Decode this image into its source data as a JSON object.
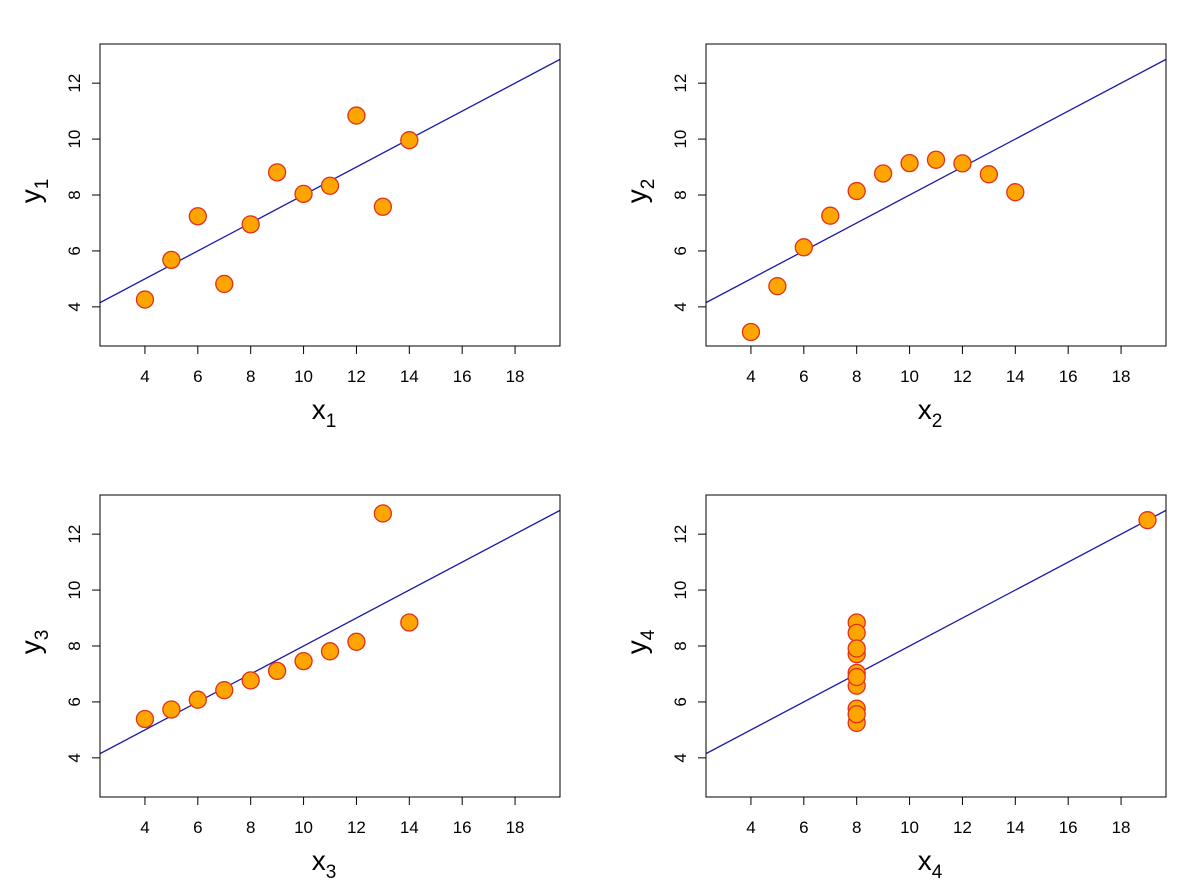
{
  "chart_data": [
    {
      "type": "scatter",
      "xlabel": "x",
      "xlabel_sub": "1",
      "ylabel": "y",
      "ylabel_sub": "1",
      "x_ticks": [
        4,
        6,
        8,
        10,
        12,
        14,
        16,
        18
      ],
      "y_ticks": [
        4,
        6,
        8,
        10,
        12
      ],
      "xlim": [
        2.3,
        19.7
      ],
      "ylim": [
        2.6,
        13.4
      ],
      "grid": false,
      "points": [
        [
          10,
          8.04
        ],
        [
          8,
          6.95
        ],
        [
          13,
          7.58
        ],
        [
          9,
          8.81
        ],
        [
          11,
          8.33
        ],
        [
          14,
          9.96
        ],
        [
          6,
          7.24
        ],
        [
          4,
          4.26
        ],
        [
          12,
          10.84
        ],
        [
          7,
          4.82
        ],
        [
          5,
          5.68
        ]
      ],
      "fit_line": {
        "intercept": 3.0,
        "slope": 0.5
      },
      "colors": {
        "point_fill": "#ffa500",
        "point_stroke": "#e0301e",
        "line": "#1a1aaa"
      }
    },
    {
      "type": "scatter",
      "xlabel": "x",
      "xlabel_sub": "2",
      "ylabel": "y",
      "ylabel_sub": "2",
      "x_ticks": [
        4,
        6,
        8,
        10,
        12,
        14,
        16,
        18
      ],
      "y_ticks": [
        4,
        6,
        8,
        10,
        12
      ],
      "xlim": [
        2.3,
        19.7
      ],
      "ylim": [
        2.6,
        13.4
      ],
      "grid": false,
      "points": [
        [
          10,
          9.14
        ],
        [
          8,
          8.14
        ],
        [
          13,
          8.74
        ],
        [
          9,
          8.77
        ],
        [
          11,
          9.26
        ],
        [
          14,
          8.1
        ],
        [
          6,
          6.13
        ],
        [
          4,
          3.1
        ],
        [
          12,
          9.13
        ],
        [
          7,
          7.26
        ],
        [
          5,
          4.74
        ]
      ],
      "fit_line": {
        "intercept": 3.0,
        "slope": 0.5
      },
      "colors": {
        "point_fill": "#ffa500",
        "point_stroke": "#e0301e",
        "line": "#1a1aaa"
      }
    },
    {
      "type": "scatter",
      "xlabel": "x",
      "xlabel_sub": "3",
      "ylabel": "y",
      "ylabel_sub": "3",
      "x_ticks": [
        4,
        6,
        8,
        10,
        12,
        14,
        16,
        18
      ],
      "y_ticks": [
        4,
        6,
        8,
        10,
        12
      ],
      "xlim": [
        2.3,
        19.7
      ],
      "ylim": [
        2.6,
        13.4
      ],
      "grid": false,
      "points": [
        [
          10,
          7.46
        ],
        [
          8,
          6.77
        ],
        [
          13,
          12.74
        ],
        [
          9,
          7.11
        ],
        [
          11,
          7.81
        ],
        [
          14,
          8.84
        ],
        [
          6,
          6.08
        ],
        [
          4,
          5.39
        ],
        [
          12,
          8.15
        ],
        [
          7,
          6.42
        ],
        [
          5,
          5.73
        ]
      ],
      "fit_line": {
        "intercept": 3.0,
        "slope": 0.5
      },
      "colors": {
        "point_fill": "#ffa500",
        "point_stroke": "#e0301e",
        "line": "#1a1aaa"
      }
    },
    {
      "type": "scatter",
      "xlabel": "x",
      "xlabel_sub": "4",
      "ylabel": "y",
      "ylabel_sub": "4",
      "x_ticks": [
        4,
        6,
        8,
        10,
        12,
        14,
        16,
        18
      ],
      "y_ticks": [
        4,
        6,
        8,
        10,
        12
      ],
      "xlim": [
        2.3,
        19.7
      ],
      "ylim": [
        2.6,
        13.4
      ],
      "grid": false,
      "points": [
        [
          8,
          6.58
        ],
        [
          8,
          5.76
        ],
        [
          8,
          7.71
        ],
        [
          8,
          8.84
        ],
        [
          8,
          8.47
        ],
        [
          8,
          7.04
        ],
        [
          8,
          5.25
        ],
        [
          19,
          12.5
        ],
        [
          8,
          5.56
        ],
        [
          8,
          7.91
        ],
        [
          8,
          6.89
        ]
      ],
      "fit_line": {
        "intercept": 3.0,
        "slope": 0.5
      },
      "colors": {
        "point_fill": "#ffa500",
        "point_stroke": "#e0301e",
        "line": "#1a1aaa"
      }
    }
  ]
}
